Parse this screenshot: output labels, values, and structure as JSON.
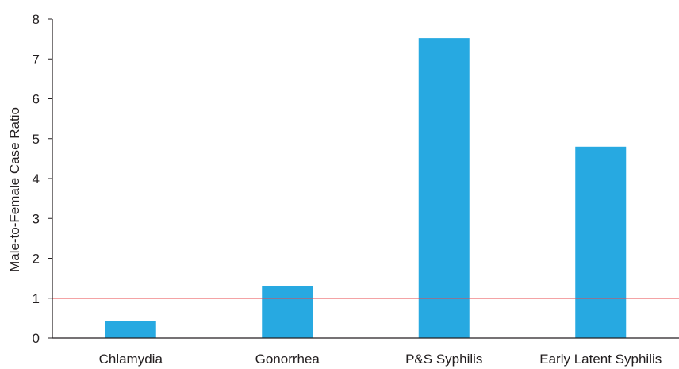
{
  "chart_data": {
    "type": "bar",
    "categories": [
      "Chlamydia",
      "Gonorrhea",
      "P&S Syphilis",
      "Early Latent Syphilis"
    ],
    "values": [
      0.43,
      1.31,
      7.52,
      4.8
    ],
    "ylabel": "Male-to-Female Case Ratio",
    "xlabel": "",
    "ylim": [
      0,
      8
    ],
    "yticks": [
      "0",
      "1",
      "2",
      "3",
      "4",
      "5",
      "6",
      "7",
      "8"
    ],
    "reference_line": {
      "y": 1,
      "color": "#e8474b"
    },
    "bar_color": "#27a9e1",
    "axis_color": "#231f20",
    "grid": false,
    "legend": "none"
  }
}
